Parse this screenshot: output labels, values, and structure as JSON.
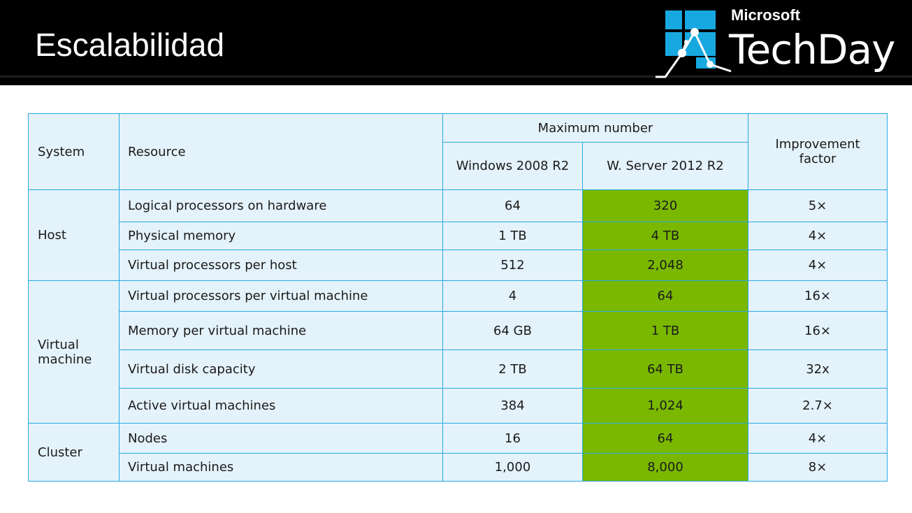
{
  "header": {
    "title": "Escalabilidad",
    "logo_brand": "Microsoft",
    "logo_product": "TechDay"
  },
  "colors": {
    "header_bg": "#000000",
    "table_border": "#29a9e1",
    "cell_bg": "#e4f2fb",
    "highlight": "#7ab800"
  },
  "table": {
    "headers": {
      "system": "System",
      "resource": "Resource",
      "maximum_number": "Maximum number",
      "windows_2008": "Windows 2008 R2",
      "server_2012": "W. Server 2012 R2",
      "improvement": "Improvement factor"
    },
    "groups": [
      {
        "system": "Host",
        "rows": [
          {
            "resource": "Logical processors on hardware",
            "win2008": "64",
            "ws2012": "320",
            "factor": "5×"
          },
          {
            "resource": "Physical memory",
            "win2008": "1 TB",
            "ws2012": "4 TB",
            "factor": "4×"
          },
          {
            "resource": "Virtual processors per host",
            "win2008": "512",
            "ws2012": "2,048",
            "factor": "4×"
          }
        ]
      },
      {
        "system": "Virtual machine",
        "rows": [
          {
            "resource": "Virtual processors per virtual machine",
            "win2008": "4",
            "ws2012": "64",
            "factor": "16×"
          },
          {
            "resource": "Memory per virtual machine",
            "win2008": "64 GB",
            "ws2012": "1 TB",
            "factor": "16×"
          },
          {
            "resource": "Virtual disk capacity",
            "win2008": "2 TB",
            "ws2012": "64 TB",
            "factor": "32x"
          },
          {
            "resource": "Active virtual machines",
            "win2008": "384",
            "ws2012": "1,024",
            "factor": "2.7×"
          }
        ]
      },
      {
        "system": "Cluster",
        "rows": [
          {
            "resource": "Nodes",
            "win2008": "16",
            "ws2012": "64",
            "factor": "4×"
          },
          {
            "resource": "Virtual machines",
            "win2008": "1,000",
            "ws2012": "8,000",
            "factor": "8×"
          }
        ]
      }
    ]
  }
}
